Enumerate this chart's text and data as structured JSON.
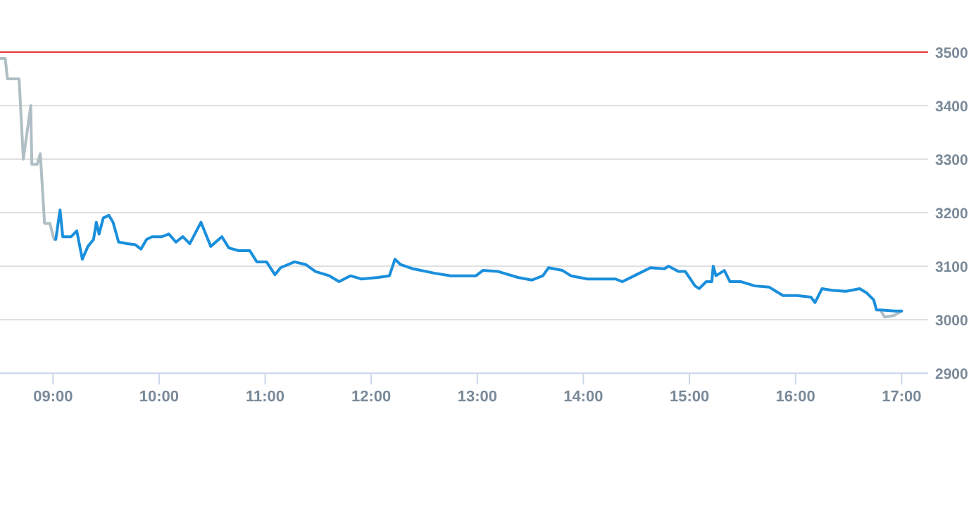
{
  "chart_data": {
    "type": "line",
    "xlim": [
      8.5,
      17.25
    ],
    "ylim": [
      2900,
      3500
    ],
    "xticks": [
      {
        "value": 9,
        "label": "09:00"
      },
      {
        "value": 10,
        "label": "10:00"
      },
      {
        "value": 11,
        "label": "11:00"
      },
      {
        "value": 12,
        "label": "12:00"
      },
      {
        "value": 13,
        "label": "13:00"
      },
      {
        "value": 14,
        "label": "14:00"
      },
      {
        "value": 15,
        "label": "15:00"
      },
      {
        "value": 16,
        "label": "16:00"
      },
      {
        "value": 17,
        "label": "17:00"
      }
    ],
    "yticks": [
      2900,
      3000,
      3100,
      3200,
      3300,
      3400,
      3500
    ],
    "grid": "y",
    "ref_lines": [
      {
        "axis": "y",
        "value": 3500,
        "color": "#e53935"
      }
    ],
    "series": [
      {
        "color": "#b0bec5",
        "x": [
          8.5,
          8.55,
          8.57,
          8.68,
          8.72,
          8.79,
          8.8,
          8.85,
          8.88,
          8.92,
          8.97,
          9.01,
          9.02,
          16.8,
          16.84,
          16.93,
          17.0
        ],
        "values": [
          3488,
          3488,
          3450,
          3450,
          3300,
          3400,
          3290,
          3290,
          3310,
          3180,
          3180,
          3150,
          null,
          3018,
          3005,
          3008,
          3016
        ]
      },
      {
        "color": "#1a8fdc",
        "x": [
          9.026,
          9.066,
          9.092,
          9.171,
          9.224,
          9.276,
          9.329,
          9.382,
          9.408,
          9.434,
          9.474,
          9.526,
          9.566,
          9.618,
          9.697,
          9.776,
          9.829,
          9.882,
          9.934,
          10.026,
          10.092,
          10.158,
          10.224,
          10.289,
          10.395,
          10.487,
          10.592,
          10.658,
          10.75,
          10.855,
          10.921,
          11.013,
          11.092,
          11.145,
          11.276,
          11.382,
          11.474,
          11.605,
          11.697,
          11.803,
          11.908,
          12.066,
          12.171,
          12.224,
          12.276,
          12.395,
          12.592,
          12.75,
          12.987,
          13.053,
          13.197,
          13.382,
          13.513,
          13.618,
          13.671,
          13.803,
          13.882,
          14.039,
          14.303,
          14.368,
          14.5,
          14.632,
          14.763,
          14.803,
          14.895,
          14.961,
          15.053,
          15.092,
          15.158,
          15.211,
          15.224,
          15.25,
          15.329,
          15.382,
          15.487,
          15.618,
          15.75,
          15.816,
          15.882,
          16.013,
          16.145,
          16.184,
          16.25,
          16.342,
          16.474,
          16.605,
          16.671,
          16.737,
          16.763,
          16.803,
          16.934,
          17.0
        ],
        "values": [
          3150,
          3205,
          3155,
          3155,
          3166,
          3113,
          3137,
          3150,
          3182,
          3160,
          3190,
          3195,
          3182,
          3145,
          3142,
          3140,
          3132,
          3150,
          3155,
          3155,
          3160,
          3145,
          3155,
          3142,
          3182,
          3137,
          3155,
          3134,
          3129,
          3129,
          3108,
          3108,
          3084,
          3097,
          3108,
          3103,
          3090,
          3082,
          3071,
          3082,
          3076,
          3079,
          3082,
          3113,
          3103,
          3095,
          3087,
          3082,
          3082,
          3092,
          3090,
          3079,
          3074,
          3082,
          3097,
          3092,
          3082,
          3076,
          3076,
          3071,
          3084,
          3097,
          3095,
          3100,
          3090,
          3090,
          3063,
          3058,
          3071,
          3071,
          3100,
          3082,
          3092,
          3071,
          3071,
          3063,
          3061,
          3053,
          3045,
          3045,
          3042,
          3032,
          3058,
          3055,
          3053,
          3058,
          3050,
          3037,
          3018,
          3018,
          3016,
          3016
        ]
      }
    ]
  }
}
